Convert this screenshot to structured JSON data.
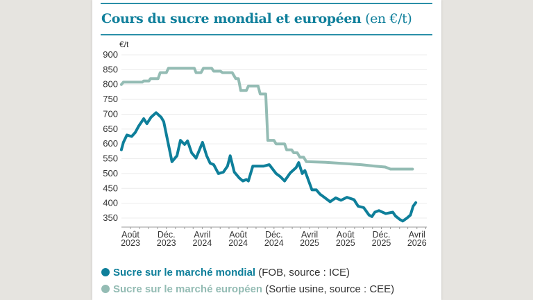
{
  "chart_data": {
    "type": "line",
    "title": "Cours du sucre mondial et européen",
    "title_unit": "(en €/t)",
    "ylabel": "€/t",
    "ylim": [
      330,
      900
    ],
    "yticks": [
      900,
      850,
      800,
      750,
      700,
      650,
      600,
      550,
      500,
      450,
      400,
      350
    ],
    "xticks": [
      {
        "date": "2023-08-01",
        "label": [
          "Août",
          "2023"
        ]
      },
      {
        "date": "2023-12-01",
        "label": [
          "Déc.",
          "2023"
        ]
      },
      {
        "date": "2024-04-01",
        "label": [
          "Avril",
          "2024"
        ]
      },
      {
        "date": "2024-08-01",
        "label": [
          "Août",
          "2024"
        ]
      },
      {
        "date": "2024-12-01",
        "label": [
          "Déc.",
          "2024"
        ]
      },
      {
        "date": "2025-04-01",
        "label": [
          "Avril",
          "2025"
        ]
      },
      {
        "date": "2025-08-01",
        "label": [
          "Août",
          "2025"
        ]
      },
      {
        "date": "2025-12-01",
        "label": [
          "Déc.",
          "2025"
        ]
      },
      {
        "date": "2026-04-01",
        "label": [
          "Avril",
          "2026"
        ]
      }
    ],
    "grid": true,
    "legend_placement": "bottom",
    "series": [
      {
        "name": "Sucre sur le marché mondial",
        "note": "(FOB, source : ICE)",
        "color": "#0e7f9a",
        "points": [
          [
            "2023-07-01",
            580
          ],
          [
            "2023-07-08",
            605
          ],
          [
            "2023-07-20",
            630
          ],
          [
            "2023-08-05",
            625
          ],
          [
            "2023-08-17",
            638
          ],
          [
            "2023-08-29",
            660
          ],
          [
            "2023-09-15",
            685
          ],
          [
            "2023-09-26",
            668
          ],
          [
            "2023-10-10",
            690
          ],
          [
            "2023-10-27",
            705
          ],
          [
            "2023-11-13",
            690
          ],
          [
            "2023-11-22",
            675
          ],
          [
            "2023-12-20",
            540
          ],
          [
            "2024-01-06",
            560
          ],
          [
            "2024-01-18",
            612
          ],
          [
            "2024-02-01",
            598
          ],
          [
            "2024-02-11",
            610
          ],
          [
            "2024-02-25",
            570
          ],
          [
            "2024-03-11",
            552
          ],
          [
            "2024-04-02",
            605
          ],
          [
            "2024-04-16",
            560
          ],
          [
            "2024-04-28",
            535
          ],
          [
            "2024-05-10",
            530
          ],
          [
            "2024-05-26",
            500
          ],
          [
            "2024-06-12",
            505
          ],
          [
            "2024-06-26",
            525
          ],
          [
            "2024-07-05",
            560
          ],
          [
            "2024-07-19",
            505
          ],
          [
            "2024-08-05",
            485
          ],
          [
            "2024-08-17",
            475
          ],
          [
            "2024-08-29",
            480
          ],
          [
            "2024-09-05",
            475
          ],
          [
            "2024-09-20",
            525
          ],
          [
            "2024-10-08",
            525
          ],
          [
            "2024-10-27",
            525
          ],
          [
            "2024-11-15",
            530
          ],
          [
            "2024-12-08",
            500
          ],
          [
            "2024-12-22",
            490
          ],
          [
            "2025-01-06",
            475
          ],
          [
            "2025-01-25",
            502
          ],
          [
            "2025-02-14",
            520
          ],
          [
            "2025-02-23",
            537
          ],
          [
            "2025-03-07",
            500
          ],
          [
            "2025-03-16",
            510
          ],
          [
            "2025-04-09",
            445
          ],
          [
            "2025-04-24",
            445
          ],
          [
            "2025-05-07",
            430
          ],
          [
            "2025-05-21",
            420
          ],
          [
            "2025-06-10",
            405
          ],
          [
            "2025-06-29",
            418
          ],
          [
            "2025-07-17",
            410
          ],
          [
            "2025-08-06",
            420
          ],
          [
            "2025-08-30",
            412
          ],
          [
            "2025-09-13",
            390
          ],
          [
            "2025-10-02",
            385
          ],
          [
            "2025-10-20",
            360
          ],
          [
            "2025-10-30",
            355
          ],
          [
            "2025-11-09",
            370
          ],
          [
            "2025-11-23",
            375
          ],
          [
            "2025-12-16",
            365
          ],
          [
            "2026-01-09",
            370
          ],
          [
            "2026-01-18",
            357
          ],
          [
            "2026-02-02",
            345
          ],
          [
            "2026-02-12",
            340
          ],
          [
            "2026-02-26",
            350
          ],
          [
            "2026-03-10",
            360
          ],
          [
            "2026-03-19",
            390
          ],
          [
            "2026-03-28",
            402
          ]
        ]
      },
      {
        "name": "Sucre sur le marché européen",
        "note": "(Sortie usine, source : CEE)",
        "color": "#94bcb4",
        "points": [
          [
            "2023-07-01",
            800
          ],
          [
            "2023-07-08",
            808
          ],
          [
            "2023-09-10",
            808
          ],
          [
            "2023-09-15",
            812
          ],
          [
            "2023-10-03",
            812
          ],
          [
            "2023-10-08",
            820
          ],
          [
            "2023-11-03",
            820
          ],
          [
            "2023-11-10",
            840
          ],
          [
            "2023-12-01",
            840
          ],
          [
            "2023-12-08",
            855
          ],
          [
            "2024-03-05",
            855
          ],
          [
            "2024-03-11",
            840
          ],
          [
            "2024-03-28",
            840
          ],
          [
            "2024-04-05",
            855
          ],
          [
            "2024-05-03",
            855
          ],
          [
            "2024-05-10",
            845
          ],
          [
            "2024-06-02",
            845
          ],
          [
            "2024-06-09",
            840
          ],
          [
            "2024-07-12",
            840
          ],
          [
            "2024-07-24",
            820
          ],
          [
            "2024-08-02",
            820
          ],
          [
            "2024-08-10",
            780
          ],
          [
            "2024-08-29",
            780
          ],
          [
            "2024-09-05",
            795
          ],
          [
            "2024-10-08",
            795
          ],
          [
            "2024-10-15",
            768
          ],
          [
            "2024-11-03",
            768
          ],
          [
            "2024-11-10",
            612
          ],
          [
            "2024-12-01",
            612
          ],
          [
            "2024-12-08",
            600
          ],
          [
            "2025-01-06",
            600
          ],
          [
            "2025-01-13",
            580
          ],
          [
            "2025-01-30",
            580
          ],
          [
            "2025-02-06",
            570
          ],
          [
            "2025-02-18",
            570
          ],
          [
            "2025-02-27",
            555
          ],
          [
            "2025-03-12",
            555
          ],
          [
            "2025-03-21",
            540
          ],
          [
            "2025-05-26",
            538
          ],
          [
            "2025-08-06",
            533
          ],
          [
            "2025-09-23",
            530
          ],
          [
            "2025-11-09",
            525
          ],
          [
            "2025-12-14",
            522
          ],
          [
            "2026-01-01",
            515
          ],
          [
            "2026-03-17",
            515
          ]
        ]
      }
    ]
  }
}
